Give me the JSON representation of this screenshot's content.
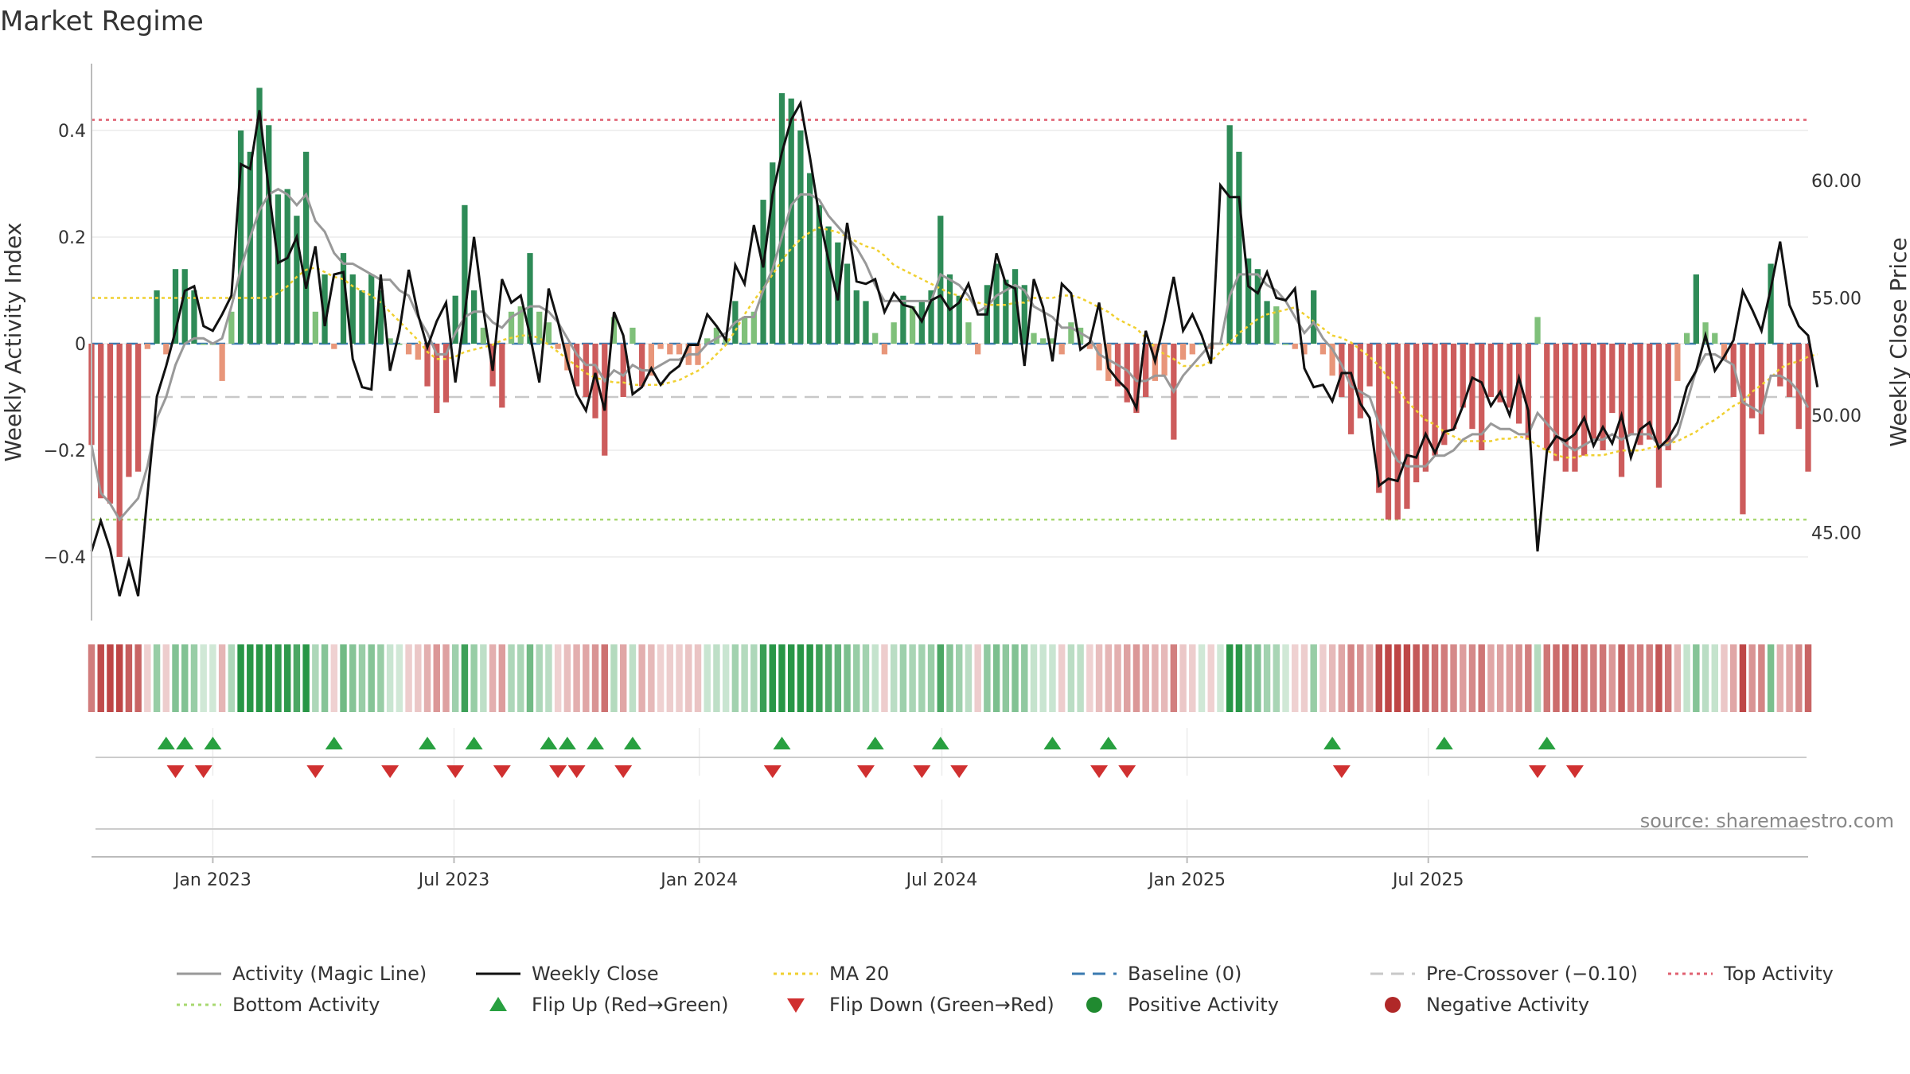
{
  "chart_data": {
    "type": "bar+line",
    "title": "Market Regime",
    "ylabel_left": "Weekly Activity Index",
    "ylabel_right": "Weekly Close Price",
    "source": "source: sharemaestro.com",
    "x_start": "2022-10-02",
    "x_step_days": 7,
    "ylim_left": [
      -0.52,
      0.52
    ],
    "ylim_right": [
      41.8,
      64.2
    ],
    "yticks_left": [
      {
        "value": -0.4,
        "label": "−0.4"
      },
      {
        "value": -0.2,
        "label": "−0.2"
      },
      {
        "value": 0,
        "label": "0"
      },
      {
        "value": 0.2,
        "label": "0.2"
      },
      {
        "value": 0.4,
        "label": "0.4"
      }
    ],
    "yticks_right": [
      {
        "value": 45,
        "label": "45.00"
      },
      {
        "value": 50,
        "label": "50.00"
      },
      {
        "value": 55,
        "label": "55.00"
      },
      {
        "value": 60,
        "label": "60.00"
      }
    ],
    "xticks": [
      {
        "date": "2023-01-01",
        "label": "Jan 2023"
      },
      {
        "date": "2023-07-01",
        "label": "Jul 2023"
      },
      {
        "date": "2024-01-01",
        "label": "Jan 2024"
      },
      {
        "date": "2024-07-01",
        "label": "Jul 2024"
      },
      {
        "date": "2025-01-01",
        "label": "Jan 2025"
      },
      {
        "date": "2025-07-01",
        "label": "Jul 2025"
      }
    ],
    "reference_lines": {
      "top_activity": 0.42,
      "baseline": 0,
      "pre_crossover": -0.1,
      "bottom_activity": -0.33
    },
    "activity": [
      -0.19,
      -0.29,
      -0.3,
      -0.4,
      -0.25,
      -0.24,
      -0.01,
      0.1,
      -0.02,
      0.14,
      0.14,
      0.1,
      0.0,
      0.0,
      -0.07,
      0.06,
      0.4,
      0.36,
      0.48,
      0.41,
      0.28,
      0.29,
      0.24,
      0.36,
      0.06,
      0.13,
      -0.01,
      0.17,
      0.13,
      0.1,
      0.13,
      0.1,
      0.01,
      0.0,
      -0.02,
      -0.03,
      -0.08,
      -0.13,
      -0.11,
      0.09,
      0.26,
      0.1,
      0.03,
      -0.08,
      -0.12,
      0.06,
      0.07,
      0.17,
      0.06,
      0.04,
      -0.01,
      -0.05,
      -0.08,
      -0.1,
      -0.14,
      -0.21,
      0.05,
      -0.1,
      0.03,
      -0.08,
      -0.06,
      -0.01,
      -0.02,
      -0.02,
      -0.04,
      -0.04,
      0.01,
      0.03,
      0.01,
      0.08,
      0.05,
      0.06,
      0.27,
      0.34,
      0.47,
      0.46,
      0.4,
      0.32,
      0.26,
      0.22,
      0.19,
      0.15,
      0.1,
      0.08,
      0.02,
      -0.02,
      0.04,
      0.09,
      0.07,
      0.08,
      0.1,
      0.24,
      0.13,
      0.09,
      0.04,
      -0.02,
      0.11,
      0.15,
      0.12,
      0.14,
      0.11,
      0.02,
      0.01,
      0.01,
      -0.02,
      0.04,
      0.03,
      -0.01,
      -0.05,
      -0.07,
      -0.08,
      -0.11,
      -0.13,
      -0.1,
      -0.07,
      -0.06,
      -0.18,
      -0.03,
      -0.02,
      0.0,
      -0.01,
      0.0,
      0.41,
      0.36,
      0.16,
      0.14,
      0.08,
      0.07,
      0.0,
      -0.01,
      -0.02,
      0.1,
      -0.02,
      -0.06,
      -0.1,
      -0.17,
      -0.14,
      -0.08,
      -0.28,
      -0.33,
      -0.33,
      -0.31,
      -0.26,
      -0.24,
      -0.21,
      -0.19,
      -0.16,
      -0.12,
      -0.16,
      -0.2,
      -0.1,
      -0.11,
      -0.12,
      -0.15,
      -0.18,
      0.05,
      -0.2,
      -0.22,
      -0.24,
      -0.24,
      -0.21,
      -0.18,
      -0.2,
      -0.13,
      -0.25,
      -0.17,
      -0.19,
      -0.18,
      -0.27,
      -0.2,
      -0.07,
      0.02,
      0.13,
      0.04,
      0.02,
      -0.03,
      -0.1,
      -0.32,
      -0.14,
      -0.17,
      0.15,
      -0.08,
      -0.1,
      -0.16,
      -0.24
    ],
    "magic_line": [
      -0.19,
      -0.28,
      -0.3,
      -0.33,
      -0.31,
      -0.29,
      -0.23,
      -0.14,
      -0.1,
      -0.04,
      0.0,
      0.01,
      0.01,
      0.0,
      0.01,
      0.07,
      0.14,
      0.2,
      0.25,
      0.28,
      0.29,
      0.28,
      0.26,
      0.28,
      0.23,
      0.21,
      0.17,
      0.15,
      0.15,
      0.14,
      0.13,
      0.12,
      0.12,
      0.1,
      0.09,
      0.05,
      0.02,
      -0.02,
      -0.02,
      0.02,
      0.05,
      0.06,
      0.06,
      0.04,
      0.03,
      0.05,
      0.06,
      0.07,
      0.07,
      0.06,
      0.04,
      0.01,
      -0.02,
      -0.04,
      -0.04,
      -0.07,
      -0.05,
      -0.06,
      -0.04,
      -0.05,
      -0.05,
      -0.04,
      -0.03,
      -0.03,
      -0.02,
      -0.02,
      0.0,
      0.01,
      0.02,
      0.04,
      0.05,
      0.05,
      0.1,
      0.14,
      0.2,
      0.26,
      0.28,
      0.28,
      0.27,
      0.24,
      0.22,
      0.2,
      0.18,
      0.15,
      0.11,
      0.08,
      0.08,
      0.08,
      0.08,
      0.08,
      0.08,
      0.13,
      0.12,
      0.11,
      0.09,
      0.06,
      0.07,
      0.09,
      0.1,
      0.11,
      0.1,
      0.07,
      0.06,
      0.05,
      0.03,
      0.03,
      0.02,
      0.01,
      -0.02,
      -0.03,
      -0.04,
      -0.05,
      -0.07,
      -0.07,
      -0.06,
      -0.06,
      -0.09,
      -0.06,
      -0.04,
      -0.02,
      0.0,
      0.0,
      0.09,
      0.13,
      0.13,
      0.13,
      0.11,
      0.1,
      0.08,
      0.05,
      0.02,
      0.04,
      0.01,
      -0.01,
      -0.04,
      -0.08,
      -0.09,
      -0.1,
      -0.15,
      -0.19,
      -0.22,
      -0.23,
      -0.23,
      -0.23,
      -0.21,
      -0.21,
      -0.2,
      -0.18,
      -0.17,
      -0.17,
      -0.15,
      -0.16,
      -0.16,
      -0.17,
      -0.17,
      -0.13,
      -0.15,
      -0.17,
      -0.19,
      -0.2,
      -0.19,
      -0.18,
      -0.18,
      -0.17,
      -0.18,
      -0.17,
      -0.17,
      -0.17,
      -0.19,
      -0.19,
      -0.17,
      -0.11,
      -0.05,
      -0.02,
      -0.02,
      -0.03,
      -0.04,
      -0.11,
      -0.12,
      -0.13,
      -0.06,
      -0.06,
      -0.07,
      -0.09,
      -0.12
    ],
    "weekly_close": [
      44.2,
      45.5,
      44.3,
      42.3,
      43.8,
      42.3,
      46.6,
      50.8,
      52.1,
      53.6,
      55.3,
      55.5,
      53.8,
      53.6,
      54.3,
      55.1,
      60.7,
      60.5,
      63.0,
      59.6,
      56.5,
      56.7,
      57.6,
      55.4,
      57.2,
      53.8,
      56.0,
      56.1,
      52.4,
      51.2,
      51.1,
      56.0,
      51.9,
      53.6,
      56.2,
      54.3,
      52.9,
      54.0,
      54.8,
      51.4,
      54.3,
      57.6,
      54.5,
      51.9,
      55.8,
      54.8,
      55.1,
      53.4,
      51.4,
      55.4,
      54.0,
      52.3,
      50.9,
      50.2,
      51.8,
      50.2,
      54.4,
      53.4,
      50.9,
      51.2,
      52.0,
      51.3,
      51.8,
      52.1,
      53.0,
      53.0,
      54.3,
      53.8,
      53.2,
      56.4,
      55.6,
      58.1,
      56.3,
      59.4,
      61.2,
      62.6,
      63.3,
      61.0,
      58.5,
      56.6,
      54.9,
      58.2,
      55.7,
      55.6,
      55.8,
      54.4,
      55.2,
      54.7,
      54.6,
      54.0,
      54.9,
      55.1,
      54.5,
      54.8,
      55.6,
      54.3,
      54.3,
      56.9,
      55.6,
      55.4,
      52.1,
      55.8,
      54.6,
      52.3,
      55.6,
      55.2,
      52.8,
      53.1,
      54.8,
      52.0,
      51.5,
      51.1,
      50.3,
      53.6,
      52.3,
      54.0,
      55.9,
      53.6,
      54.3,
      53.4,
      52.2,
      59.8,
      59.3,
      59.3,
      55.5,
      55.2,
      56.1,
      55.0,
      54.9,
      55.4,
      52.0,
      51.2,
      51.3,
      50.6,
      51.8,
      51.8,
      50.5,
      49.9,
      47.0,
      47.3,
      47.2,
      48.3,
      48.2,
      49.2,
      48.4,
      49.3,
      49.4,
      50.4,
      51.6,
      51.4,
      50.4,
      51.0,
      50.0,
      51.6,
      50.2,
      44.2,
      48.5,
      49.1,
      48.9,
      49.2,
      49.9,
      48.7,
      49.5,
      48.8,
      50.0,
      48.2,
      49.4,
      49.7,
      48.6,
      49.0,
      49.7,
      51.2,
      51.9,
      53.4,
      51.9,
      52.5,
      53.2,
      55.3,
      54.5,
      53.6,
      55.4,
      57.4,
      54.7,
      53.8,
      53.4,
      51.2
    ],
    "ma20": [
      55.0,
      55.0,
      55.0,
      55.0,
      55.0,
      55.0,
      55.0,
      55.0,
      55.0,
      55.0,
      55.0,
      55.0,
      55.0,
      55.0,
      55.0,
      55.0,
      55.0,
      55.0,
      55.0,
      55.0,
      55.2,
      55.5,
      55.9,
      56.2,
      56.3,
      56.1,
      55.9,
      55.8,
      55.5,
      55.3,
      55.1,
      54.8,
      54.4,
      54.0,
      53.6,
      53.2,
      52.7,
      52.4,
      52.4,
      52.5,
      52.7,
      52.8,
      52.9,
      53.0,
      53.2,
      53.3,
      53.4,
      53.4,
      53.3,
      53.0,
      52.7,
      52.4,
      52.1,
      51.8,
      51.6,
      51.5,
      51.4,
      51.4,
      51.3,
      51.3,
      51.3,
      51.3,
      51.4,
      51.5,
      51.7,
      51.9,
      52.2,
      52.6,
      53.0,
      53.6,
      54.3,
      54.9,
      55.4,
      56.0,
      56.6,
      57.1,
      57.5,
      57.8,
      58.0,
      57.9,
      57.8,
      57.6,
      57.4,
      57.2,
      57.1,
      56.8,
      56.4,
      56.2,
      56.0,
      55.8,
      55.6,
      55.4,
      55.2,
      55.1,
      54.9,
      54.8,
      54.7,
      54.7,
      54.7,
      54.8,
      54.8,
      55.0,
      55.0,
      55.0,
      55.1,
      55.1,
      55.0,
      54.8,
      54.6,
      54.4,
      54.1,
      53.9,
      53.7,
      53.3,
      52.9,
      52.6,
      52.4,
      52.1,
      52.1,
      52.1,
      52.3,
      52.7,
      53.1,
      53.5,
      53.8,
      54.1,
      54.3,
      54.4,
      54.5,
      54.6,
      54.3,
      54.0,
      53.7,
      53.4,
      53.3,
      53.1,
      52.8,
      52.5,
      52.1,
      51.6,
      51.1,
      50.6,
      50.2,
      49.8,
      49.6,
      49.3,
      49.1,
      48.9,
      48.9,
      48.9,
      48.9,
      49.0,
      49.0,
      49.1,
      49.0,
      48.7,
      48.5,
      48.3,
      48.2,
      48.2,
      48.3,
      48.3,
      48.3,
      48.4,
      48.5,
      48.5,
      48.5,
      48.6,
      48.7,
      48.8,
      48.9,
      49.1,
      49.3,
      49.6,
      49.8,
      50.1,
      50.4,
      50.6,
      51.0,
      51.3,
      51.6,
      52.0,
      52.2,
      52.3,
      52.5,
      52.6
    ],
    "flip_up": [
      "2022-11-27",
      "2022-12-11",
      "2023-01-01",
      "2023-04-02",
      "2023-06-11",
      "2023-07-16",
      "2023-09-10",
      "2023-09-24",
      "2023-10-15",
      "2023-11-12",
      "2024-03-03",
      "2024-05-12",
      "2024-06-30",
      "2024-09-22",
      "2024-11-03",
      "2025-04-20",
      "2025-07-13",
      "2025-09-28"
    ],
    "flip_down": [
      "2022-12-04",
      "2022-12-25",
      "2023-03-19",
      "2023-05-14",
      "2023-07-02",
      "2023-08-06",
      "2023-09-17",
      "2023-10-01",
      "2023-11-05",
      "2024-02-25",
      "2024-05-05",
      "2024-06-16",
      "2024-07-14",
      "2024-10-27",
      "2024-11-17",
      "2025-04-27",
      "2025-09-21",
      "2025-10-19"
    ],
    "legend": [
      {
        "label": "Activity (Magic Line)",
        "style": "line",
        "color": "#999999"
      },
      {
        "label": "Weekly Close",
        "style": "line",
        "color": "#111111"
      },
      {
        "label": "MA 20",
        "style": "dotted",
        "color": "#f0d030"
      },
      {
        "label": "Baseline (0)",
        "style": "dashed",
        "color": "#3a7ab0"
      },
      {
        "label": "Pre-Crossover (−0.10)",
        "style": "dashed",
        "color": "#c8c8c8"
      },
      {
        "label": "Top Activity",
        "style": "dotted",
        "color": "#e06070"
      },
      {
        "label": "Bottom Activity",
        "style": "dotted",
        "color": "#a8d870"
      },
      {
        "label": "Flip Up (Red→Green)",
        "style": "triangle-up",
        "color": "#28a040"
      },
      {
        "label": "Flip Down (Green→Red)",
        "style": "triangle-down",
        "color": "#d03030"
      },
      {
        "label": "Positive Activity",
        "style": "dot",
        "color": "#208a30"
      },
      {
        "label": "Negative Activity",
        "style": "dot",
        "color": "#b02828"
      }
    ],
    "colors": {
      "pos_strong": "#2e8b57",
      "pos_weak": "#7fc07a",
      "neg_strong": "#cd5c5c",
      "neg_weak": "#e8967a",
      "magic": "#999999",
      "close": "#111111",
      "ma20": "#f0d030",
      "baseline": "#3a7ab0",
      "pre": "#c8c8c8",
      "top": "#e06070",
      "bottom": "#a8d870",
      "flip_up": "#28a040",
      "flip_down": "#d03030"
    }
  }
}
